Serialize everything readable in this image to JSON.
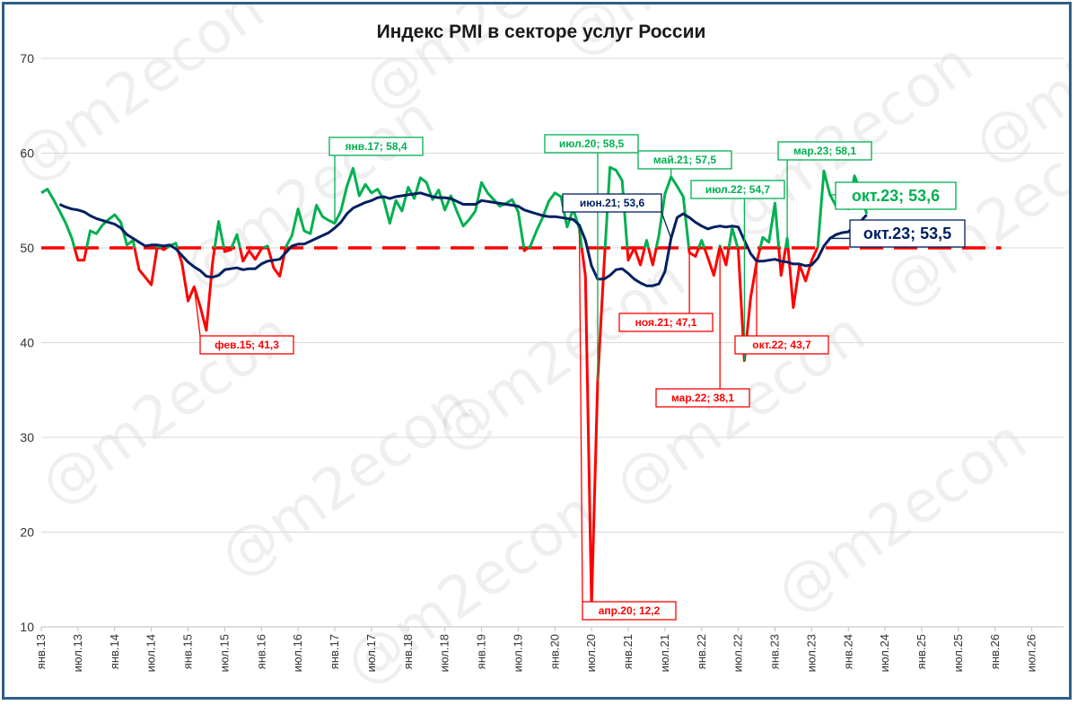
{
  "chart_data": {
    "type": "line",
    "title": "Индекс PMI в секторе услуг России",
    "ylim": [
      10,
      70
    ],
    "yticks": [
      10,
      20,
      30,
      40,
      50,
      60,
      70
    ],
    "x_tick_labels": [
      "янв.13",
      "июл.13",
      "янв.14",
      "июл.14",
      "янв.15",
      "июл.15",
      "янв.16",
      "июл.16",
      "янв.17",
      "июл.17",
      "янв.18",
      "июл.18",
      "янв.19",
      "июл.19",
      "янв.20",
      "июл.20",
      "янв.21",
      "июл.21",
      "янв.22",
      "июл.22",
      "янв.23",
      "июл.23",
      "янв.24",
      "июл.24",
      "янв.25",
      "июл.25",
      "янв.26",
      "июл.26"
    ],
    "x_start": "2013-01",
    "threshold": 50,
    "colors": {
      "above_50": "#00B050",
      "below_50": "#FF0000",
      "moving_average": "#002060",
      "threshold_line": "#FF0000",
      "frame": "#2E5F8A"
    },
    "series": [
      {
        "values": [
          55.8,
          56.2,
          55.1,
          53.9,
          52.6,
          51.0,
          48.7,
          48.7,
          51.8,
          51.5,
          52.4,
          53.0,
          53.5,
          52.7,
          50.3,
          50.8,
          47.7,
          46.9,
          46.1,
          50.3,
          49.8,
          50.2,
          50.5,
          48.4,
          44.4,
          45.9,
          43.8,
          41.3,
          48.4,
          52.8,
          49.6,
          49.8,
          51.4,
          48.6,
          49.7,
          48.8,
          49.9,
          50.2,
          47.9,
          47.0,
          50.1,
          51.3,
          54.1,
          51.8,
          51.5,
          54.5,
          53.3,
          52.9,
          52.6,
          53.9,
          56.5,
          58.4,
          55.5,
          56.7,
          55.8,
          56.2,
          55.1,
          52.6,
          55.0,
          53.9,
          56.4,
          55.2,
          57.4,
          56.9,
          55.1,
          56.1,
          54.0,
          55.5,
          53.8,
          52.3,
          53.0,
          53.9,
          56.9,
          55.8,
          55.1,
          54.4,
          54.7,
          55.1,
          53.8,
          49.7,
          50.2,
          51.8,
          53.2,
          54.9,
          55.8,
          55.4,
          52.2,
          54.1,
          52.0,
          47.0,
          12.2,
          35.9,
          47.8,
          58.5,
          58.2,
          57.1,
          48.7,
          50.0,
          48.2,
          50.8,
          48.2,
          51.3,
          55.7,
          57.5,
          56.5,
          55.4,
          49.5,
          49.1,
          50.8,
          49.0,
          47.1,
          50.2,
          48.2,
          52.1,
          49.8,
          38.1,
          44.7,
          48.5,
          51.1,
          50.6,
          54.7,
          47.1,
          51.0,
          43.7,
          48.2,
          46.5,
          48.7,
          50.1,
          58.1,
          55.6,
          54.4,
          56.8,
          54.1,
          57.6,
          55.9,
          53.6
        ]
      },
      {
        "values": [
          null,
          null,
          null,
          54.6,
          54.3,
          54.1,
          54.0,
          53.8,
          53.4,
          53.1,
          52.9,
          52.7,
          52.5,
          52.1,
          51.4,
          51.0,
          50.6,
          50.2,
          50.3,
          50.3,
          50.2,
          50.3,
          49.9,
          49.2,
          48.5,
          48.0,
          47.6,
          47.0,
          46.9,
          47.1,
          47.7,
          47.8,
          47.9,
          47.7,
          47.8,
          47.8,
          48.3,
          48.6,
          48.7,
          48.8,
          49.5,
          50.2,
          50.4,
          50.4,
          50.7,
          51.0,
          51.3,
          51.6,
          52.1,
          52.7,
          53.6,
          54.2,
          54.5,
          54.8,
          55.0,
          55.3,
          55.4,
          55.2,
          55.4,
          55.5,
          55.6,
          55.7,
          55.8,
          55.6,
          55.4,
          55.3,
          55.3,
          55.2,
          54.9,
          54.6,
          54.6,
          54.6,
          55.0,
          54.9,
          54.8,
          54.7,
          54.6,
          54.5,
          54.4,
          54.0,
          53.8,
          53.6,
          53.4,
          53.3,
          53.3,
          53.2,
          53.1,
          53.0,
          52.4,
          50.8,
          48.1,
          46.7,
          46.7,
          47.1,
          47.7,
          47.8,
          47.3,
          46.7,
          46.3,
          46.0,
          46.0,
          46.2,
          47.5,
          51.0,
          53.2,
          53.6,
          53.2,
          52.7,
          52.3,
          52.0,
          52.2,
          52.3,
          52.2,
          52.3,
          52.2,
          50.8,
          49.4,
          48.6,
          48.6,
          48.7,
          48.8,
          48.6,
          48.5,
          48.3,
          48.3,
          48.1,
          48.2,
          48.9,
          50.2,
          51.0,
          51.4,
          51.6,
          51.7,
          52.4,
          52.8,
          53.5
        ]
      }
    ],
    "annotations": [
      {
        "label": "янв.17; 58,4",
        "color": "#00B050",
        "size": "small"
      },
      {
        "label": "фев.15; 41,3",
        "color": "#FF0000",
        "size": "small"
      },
      {
        "label": "июл.20; 58,5",
        "color": "#00B050",
        "size": "small"
      },
      {
        "label": "апр.20; 12,2",
        "color": "#FF0000",
        "size": "small"
      },
      {
        "label": "июн.21; 53,6",
        "color": "#002060",
        "size": "small"
      },
      {
        "label": "май.21; 57,5",
        "color": "#00B050",
        "size": "small"
      },
      {
        "label": "ноя.21; 47,1",
        "color": "#FF0000",
        "size": "small"
      },
      {
        "label": "мар.22; 38,1",
        "color": "#FF0000",
        "size": "small"
      },
      {
        "label": "июл.22; 54,7",
        "color": "#00B050",
        "size": "small"
      },
      {
        "label": "окт.22; 43,7",
        "color": "#FF0000",
        "size": "small"
      },
      {
        "label": "мар.23; 58,1",
        "color": "#00B050",
        "size": "small"
      },
      {
        "label": "окт.23; 53,6",
        "color": "#00B050",
        "size": "big"
      },
      {
        "label": "окт.23; 53,5",
        "color": "#002060",
        "size": "big"
      }
    ],
    "watermark": "@m2econ"
  }
}
